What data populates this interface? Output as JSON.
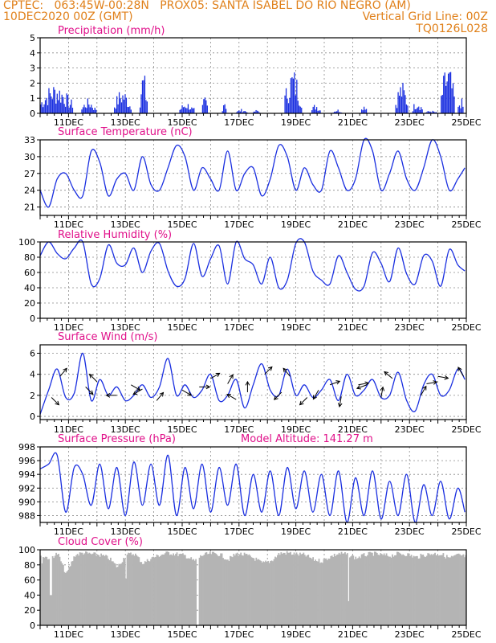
{
  "header": {
    "line1_left": "CPTEC:   063:45W-00:28N   PROX05: SANTA ISABEL DO RIO NEGRO (AM)",
    "line2_left": "10DEC2020 00Z (GMT)",
    "line2_right": "Vertical Grid Line: 00Z",
    "line3_right": "TQ0126L028"
  },
  "colors": {
    "header": "#e0801a",
    "panel_title": "#e0108a",
    "series": "#1a2fe0",
    "cloud": "#b4b4b4",
    "grid": "#8a8a8a"
  },
  "chart_data": [
    {
      "type": "bar",
      "title": "Precipitation (mm/h)",
      "xlabels": [
        "11DEC",
        "13DEC",
        "15DEC",
        "17DEC",
        "19DEC",
        "21DEC",
        "23DEC",
        "25DEC"
      ],
      "ylim": [
        0,
        5
      ],
      "yticks": [
        0,
        1,
        2,
        3,
        4,
        5
      ],
      "grid": true,
      "rain_events": [
        {
          "start": 10.0,
          "end": 11.15,
          "peak": 2.1
        },
        {
          "start": 11.45,
          "end": 11.95,
          "peak": 1.0
        },
        {
          "start": 12.6,
          "end": 13.2,
          "peak": 1.7
        },
        {
          "start": 13.5,
          "end": 13.75,
          "peak": 3.0
        },
        {
          "start": 14.9,
          "end": 15.4,
          "peak": 0.8
        },
        {
          "start": 15.7,
          "end": 15.9,
          "peak": 1.3
        },
        {
          "start": 16.4,
          "end": 16.55,
          "peak": 1.2
        },
        {
          "start": 16.9,
          "end": 17.3,
          "peak": 0.3
        },
        {
          "start": 17.5,
          "end": 17.75,
          "peak": 0.25
        },
        {
          "start": 18.6,
          "end": 19.2,
          "peak": 3.1
        },
        {
          "start": 19.55,
          "end": 19.85,
          "peak": 0.7
        },
        {
          "start": 20.3,
          "end": 20.6,
          "peak": 0.3
        },
        {
          "start": 21.3,
          "end": 21.5,
          "peak": 0.8
        },
        {
          "start": 22.5,
          "end": 22.95,
          "peak": 2.2
        },
        {
          "start": 23.1,
          "end": 23.45,
          "peak": 1.0
        },
        {
          "start": 23.55,
          "end": 23.95,
          "peak": 0.2
        },
        {
          "start": 24.1,
          "end": 24.6,
          "peak": 3.4
        },
        {
          "start": 24.7,
          "end": 24.9,
          "peak": 1.1
        }
      ]
    },
    {
      "type": "line",
      "title": "Surface Temperature (nC)",
      "xlabels": [
        "11DEC",
        "13DEC",
        "15DEC",
        "17DEC",
        "19DEC",
        "21DEC",
        "23DEC",
        "25DEC"
      ],
      "ylim": [
        19.5,
        33
      ],
      "yticks": [
        21,
        24,
        27,
        30,
        33
      ],
      "grid": true,
      "x": [
        10.0,
        10.3,
        10.6,
        10.9,
        11.2,
        11.5,
        11.8,
        12.1,
        12.4,
        12.7,
        13.0,
        13.3,
        13.6,
        13.9,
        14.2,
        14.5,
        14.8,
        15.1,
        15.4,
        15.7,
        16.0,
        16.3,
        16.6,
        16.9,
        17.2,
        17.5,
        17.8,
        18.1,
        18.4,
        18.7,
        19.0,
        19.3,
        19.6,
        19.9,
        20.2,
        20.5,
        20.8,
        21.1,
        21.4,
        21.7,
        22.0,
        22.3,
        22.6,
        22.9,
        23.2,
        23.5,
        23.8,
        24.1,
        24.4,
        24.7,
        24.95
      ],
      "values": [
        24,
        21,
        26,
        27,
        24,
        23,
        31,
        29,
        23,
        26,
        27,
        24,
        30,
        25,
        24,
        28,
        32,
        30,
        24,
        28,
        26,
        24,
        31,
        24,
        27,
        28,
        23,
        26,
        32,
        30,
        24,
        28,
        25,
        24,
        31,
        28,
        24,
        26,
        33,
        31,
        24,
        27,
        31,
        26,
        24,
        28,
        33,
        30,
        24,
        26,
        28
      ]
    },
    {
      "type": "line",
      "title": "Relative Humidity (%)",
      "xlabels": [
        "11DEC",
        "13DEC",
        "15DEC",
        "17DEC",
        "19DEC",
        "21DEC",
        "23DEC",
        "25DEC"
      ],
      "ylim": [
        0,
        100
      ],
      "yticks": [
        0,
        20,
        40,
        60,
        80,
        100
      ],
      "grid": true,
      "x": [
        10.0,
        10.3,
        10.6,
        10.9,
        11.2,
        11.5,
        11.8,
        12.1,
        12.4,
        12.7,
        13.0,
        13.3,
        13.6,
        13.9,
        14.2,
        14.5,
        14.8,
        15.1,
        15.4,
        15.7,
        16.0,
        16.3,
        16.6,
        16.9,
        17.2,
        17.5,
        17.8,
        18.1,
        18.4,
        18.7,
        19.0,
        19.3,
        19.6,
        19.9,
        20.2,
        20.5,
        20.8,
        21.1,
        21.4,
        21.7,
        22.0,
        22.3,
        22.6,
        22.9,
        23.2,
        23.5,
        23.8,
        24.1,
        24.4,
        24.7,
        24.95
      ],
      "values": [
        82,
        100,
        85,
        78,
        92,
        100,
        45,
        52,
        96,
        72,
        70,
        92,
        60,
        88,
        98,
        62,
        42,
        52,
        98,
        55,
        78,
        95,
        45,
        100,
        78,
        70,
        45,
        80,
        40,
        50,
        98,
        100,
        62,
        50,
        45,
        82,
        60,
        38,
        42,
        86,
        72,
        48,
        92,
        58,
        45,
        82,
        75,
        42,
        90,
        70,
        62
      ]
    },
    {
      "type": "line",
      "title": "Surface Wind (m/s)",
      "xlabels": [
        "11DEC",
        "13DEC",
        "15DEC",
        "17DEC",
        "19DEC",
        "21DEC",
        "23DEC",
        "25DEC"
      ],
      "ylim": [
        -0.3,
        6.8
      ],
      "yticks": [
        0,
        2,
        4,
        6
      ],
      "grid": true,
      "x": [
        10.0,
        10.3,
        10.6,
        10.9,
        11.2,
        11.5,
        11.8,
        12.1,
        12.4,
        12.7,
        13.0,
        13.3,
        13.6,
        13.9,
        14.2,
        14.5,
        14.8,
        15.1,
        15.4,
        15.7,
        16.0,
        16.3,
        16.6,
        16.9,
        17.2,
        17.5,
        17.8,
        18.1,
        18.4,
        18.7,
        19.0,
        19.3,
        19.6,
        19.9,
        20.2,
        20.5,
        20.8,
        21.1,
        21.4,
        21.7,
        22.0,
        22.3,
        22.6,
        22.9,
        23.2,
        23.5,
        23.8,
        24.1,
        24.4,
        24.7,
        24.95
      ],
      "values": [
        0.2,
        2.5,
        4.5,
        1.8,
        2.2,
        6.0,
        1.5,
        3.5,
        2.0,
        2.8,
        1.5,
        2.0,
        3.0,
        1.8,
        2.8,
        5.5,
        2.0,
        3.0,
        1.8,
        2.5,
        4.0,
        1.5,
        2.0,
        3.5,
        0.8,
        3.0,
        5.0,
        2.5,
        2.0,
        4.5,
        2.0,
        3.0,
        1.8,
        2.5,
        3.5,
        1.5,
        4.0,
        2.0,
        2.5,
        3.5,
        1.8,
        2.0,
        4.2,
        1.5,
        0.5,
        3.0,
        4.0,
        2.0,
        2.5,
        4.5,
        3.5
      ],
      "vectors": [
        {
          "x": 10.4,
          "y": 1.8,
          "dir": 135
        },
        {
          "x": 10.7,
          "y": 3.8,
          "dir": 40
        },
        {
          "x": 11.6,
          "y": 2.8,
          "dir": 135
        },
        {
          "x": 12.0,
          "y": 3.3,
          "dir": 315
        },
        {
          "x": 12.7,
          "y": 2.0,
          "dir": 270
        },
        {
          "x": 13.2,
          "y": 3.0,
          "dir": 120
        },
        {
          "x": 13.6,
          "y": 2.6,
          "dir": 240
        },
        {
          "x": 14.1,
          "y": 1.5,
          "dir": 40
        },
        {
          "x": 15.0,
          "y": 2.5,
          "dir": 120
        },
        {
          "x": 15.6,
          "y": 2.8,
          "dir": 90
        },
        {
          "x": 16.0,
          "y": 3.6,
          "dir": 60
        },
        {
          "x": 16.6,
          "y": 3.1,
          "dir": 30
        },
        {
          "x": 16.9,
          "y": 1.6,
          "dir": 300
        },
        {
          "x": 17.3,
          "y": 2.3,
          "dir": 0
        },
        {
          "x": 17.9,
          "y": 4.0,
          "dir": 45
        },
        {
          "x": 18.5,
          "y": 2.3,
          "dir": 225
        },
        {
          "x": 18.8,
          "y": 3.8,
          "dir": 320
        },
        {
          "x": 19.4,
          "y": 1.8,
          "dir": 225
        },
        {
          "x": 19.8,
          "y": 2.5,
          "dir": 210
        },
        {
          "x": 20.2,
          "y": 3.0,
          "dir": 70
        },
        {
          "x": 20.6,
          "y": 1.9,
          "dir": 190
        },
        {
          "x": 21.2,
          "y": 3.0,
          "dir": 80
        },
        {
          "x": 21.5,
          "y": 3.0,
          "dir": 250
        },
        {
          "x": 22.0,
          "y": 1.8,
          "dir": 10
        },
        {
          "x": 22.4,
          "y": 3.6,
          "dir": 310
        },
        {
          "x": 23.4,
          "y": 2.0,
          "dir": 30
        },
        {
          "x": 23.6,
          "y": 3.1,
          "dir": 80
        },
        {
          "x": 24.0,
          "y": 3.8,
          "dir": 100
        },
        {
          "x": 24.9,
          "y": 3.8,
          "dir": 330
        }
      ]
    },
    {
      "type": "line",
      "title": "Surface Pressure (hPa)",
      "annotation": "Model Altitude: 141.27 m",
      "xlabels": [
        "11DEC",
        "13DEC",
        "15DEC",
        "17DEC",
        "19DEC",
        "21DEC",
        "23DEC",
        "25DEC"
      ],
      "ylim": [
        987,
        998
      ],
      "yticks": [
        988,
        990,
        992,
        994,
        996,
        998
      ],
      "grid": true,
      "x": [
        10.0,
        10.3,
        10.6,
        10.9,
        11.2,
        11.5,
        11.8,
        12.1,
        12.4,
        12.7,
        13.0,
        13.3,
        13.6,
        13.9,
        14.2,
        14.5,
        14.8,
        15.1,
        15.4,
        15.7,
        16.0,
        16.3,
        16.6,
        16.9,
        17.2,
        17.5,
        17.8,
        18.1,
        18.4,
        18.7,
        19.0,
        19.3,
        19.6,
        19.9,
        20.2,
        20.5,
        20.8,
        21.1,
        21.4,
        21.7,
        22.0,
        22.3,
        22.6,
        22.9,
        23.2,
        23.5,
        23.8,
        24.1,
        24.4,
        24.7,
        24.95
      ],
      "values": [
        994.8,
        995.5,
        996.8,
        988.5,
        995.0,
        994.0,
        989.5,
        995.5,
        989.0,
        995.0,
        988.0,
        995.8,
        989.5,
        995.5,
        989.5,
        996.8,
        988.0,
        995.0,
        989.0,
        995.5,
        988.5,
        995.0,
        989.5,
        995.5,
        988.0,
        994.0,
        988.5,
        994.5,
        988.0,
        995.0,
        989.0,
        994.5,
        988.5,
        994.0,
        988.0,
        994.5,
        987.0,
        993.5,
        988.0,
        994.5,
        987.5,
        993.0,
        988.0,
        994.0,
        987.0,
        992.5,
        988.0,
        993.0,
        987.5,
        992.0,
        988.5
      ]
    },
    {
      "type": "bar",
      "title": "Cloud Cover (%)",
      "xlabels": [
        "11DEC",
        "13DEC",
        "15DEC",
        "17DEC",
        "19DEC",
        "21DEC",
        "23DEC",
        "25DEC"
      ],
      "ylim": [
        0,
        100
      ],
      "yticks": [
        0,
        20,
        40,
        60,
        80,
        100
      ],
      "grid": true,
      "x": [
        10.0,
        10.3,
        10.6,
        10.9,
        11.2,
        11.5,
        11.8,
        12.1,
        12.4,
        12.7,
        13.0,
        13.3,
        13.6,
        13.9,
        14.2,
        14.5,
        14.8,
        15.1,
        15.4,
        15.7,
        16.0,
        16.3,
        16.6,
        16.9,
        17.2,
        17.5,
        17.8,
        18.1,
        18.4,
        18.7,
        19.0,
        19.3,
        19.6,
        19.9,
        20.2,
        20.5,
        20.8,
        21.1,
        21.4,
        21.7,
        22.0,
        22.3,
        22.6,
        22.9,
        23.2,
        23.5,
        23.8,
        24.1,
        24.4,
        24.7,
        24.95
      ],
      "values": [
        96,
        92,
        98,
        70,
        96,
        99,
        97,
        96,
        92,
        80,
        96,
        98,
        85,
        92,
        96,
        99,
        97,
        95,
        88,
        96,
        98,
        97,
        90,
        98,
        96,
        92,
        85,
        88,
        98,
        99,
        97,
        96,
        90,
        88,
        94,
        98,
        97,
        92,
        96,
        98,
        96,
        95,
        98,
        97,
        93,
        96,
        98,
        97,
        92,
        96,
        94
      ],
      "dips": [
        {
          "x": 10.05,
          "value": 82
        },
        {
          "x": 10.35,
          "value": 40
        },
        {
          "x": 13.0,
          "value": 62
        },
        {
          "x": 15.52,
          "value": 0
        },
        {
          "x": 20.85,
          "value": 32
        }
      ]
    }
  ]
}
